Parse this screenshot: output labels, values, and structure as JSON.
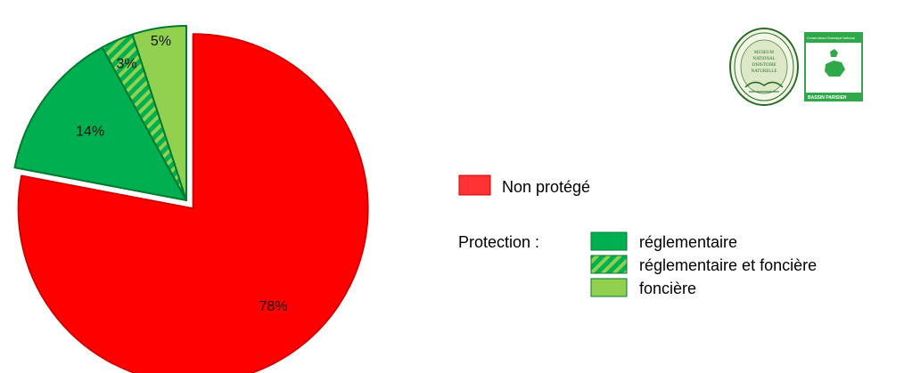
{
  "chart_data": {
    "type": "pie",
    "title": "",
    "slices": [
      {
        "key": "non_protege",
        "label": "Non protégé",
        "value": 78,
        "display": "78%",
        "color": "#ff0000",
        "stroke": "#d40000",
        "pattern": "solid",
        "exploded": true
      },
      {
        "key": "reglementaire",
        "label": "réglementaire",
        "value": 14,
        "display": "14%",
        "color": "#00b050",
        "stroke": "#007a30",
        "pattern": "solid",
        "exploded": false
      },
      {
        "key": "reglementaire_fonciere",
        "label": "réglementaire et foncière",
        "value": 3,
        "display": "3%",
        "color": "#00b050",
        "stroke": "#007a30",
        "pattern": "diagonal-stripes",
        "stripe_color": "#92d050",
        "exploded": false
      },
      {
        "key": "fonciere",
        "label": "foncière",
        "value": 5,
        "display": "5%",
        "color": "#92d050",
        "stroke": "#007a30",
        "pattern": "solid",
        "exploded": false
      }
    ]
  },
  "legend": {
    "non_protege_label": "Non protégé",
    "protection_heading": "Protection :",
    "items": [
      {
        "label": "réglementaire",
        "color": "#00b050",
        "pattern": "solid"
      },
      {
        "label": "réglementaire et foncière",
        "color": "#00b050",
        "pattern": "diagonal-stripes"
      },
      {
        "label": "foncière",
        "color": "#92d050",
        "pattern": "solid"
      }
    ]
  },
  "logos": {
    "mnhn": {
      "icon": "mnhn-seal-logo",
      "lines": [
        "MUSEUM",
        "NATIONAL",
        "D'HISTOIRE",
        "NATURELLE"
      ]
    },
    "cbnbp": {
      "icon": "cbnbp-logo",
      "top_text": "Conservatoire Botanique National",
      "bottom_text": "BASSIN PARISIEN"
    }
  }
}
